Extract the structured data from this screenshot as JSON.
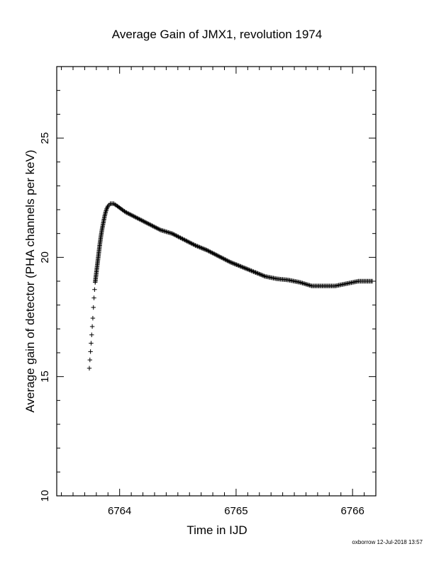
{
  "chart_data": {
    "type": "scatter",
    "title": "Average Gain of JMX1, revolution 1974",
    "xlabel": "Time in IJD",
    "ylabel": "Average gain of detector (PHA channels per keV)",
    "xlim": [
      6763.46,
      6766.2
    ],
    "ylim": [
      10,
      28
    ],
    "xticks": [
      6764,
      6765,
      6766
    ],
    "yticks": [
      10,
      15,
      20,
      25
    ],
    "grid": false,
    "marker": "plus",
    "series": [
      {
        "points": [
          [
            6763.74,
            15.35
          ],
          [
            6763.745,
            15.7
          ],
          [
            6763.75,
            16.05
          ],
          [
            6763.755,
            16.4
          ],
          [
            6763.76,
            16.75
          ],
          [
            6763.765,
            17.1
          ],
          [
            6763.77,
            17.45
          ],
          [
            6763.775,
            17.9
          ],
          [
            6763.78,
            18.3
          ],
          [
            6763.785,
            18.65
          ],
          [
            6763.79,
            18.95
          ],
          [
            6763.8,
            19.35
          ],
          [
            6763.81,
            19.75
          ],
          [
            6763.82,
            20.15
          ],
          [
            6763.83,
            20.55
          ],
          [
            6763.84,
            20.9
          ],
          [
            6763.85,
            21.2
          ],
          [
            6763.86,
            21.45
          ],
          [
            6763.87,
            21.7
          ],
          [
            6763.88,
            21.9
          ],
          [
            6763.89,
            22.05
          ],
          [
            6763.9,
            22.15
          ],
          [
            6763.92,
            22.25
          ],
          [
            6763.95,
            22.25
          ],
          [
            6763.98,
            22.15
          ],
          [
            6764.05,
            21.9
          ],
          [
            6764.15,
            21.65
          ],
          [
            6764.25,
            21.4
          ],
          [
            6764.35,
            21.15
          ],
          [
            6764.45,
            21.0
          ],
          [
            6764.55,
            20.75
          ],
          [
            6764.65,
            20.5
          ],
          [
            6764.75,
            20.3
          ],
          [
            6764.85,
            20.05
          ],
          [
            6764.95,
            19.8
          ],
          [
            6765.05,
            19.6
          ],
          [
            6765.15,
            19.4
          ],
          [
            6765.25,
            19.2
          ],
          [
            6765.35,
            19.1
          ],
          [
            6765.45,
            19.05
          ],
          [
            6765.55,
            18.95
          ],
          [
            6765.65,
            18.8
          ],
          [
            6765.75,
            18.8
          ],
          [
            6765.85,
            18.8
          ],
          [
            6765.95,
            18.9
          ],
          [
            6766.05,
            19.0
          ],
          [
            6766.15,
            19.0
          ],
          [
            6766.17,
            19.0
          ]
        ]
      }
    ]
  },
  "footer_text": "oxborrow 12-Jul-2018 13:57"
}
